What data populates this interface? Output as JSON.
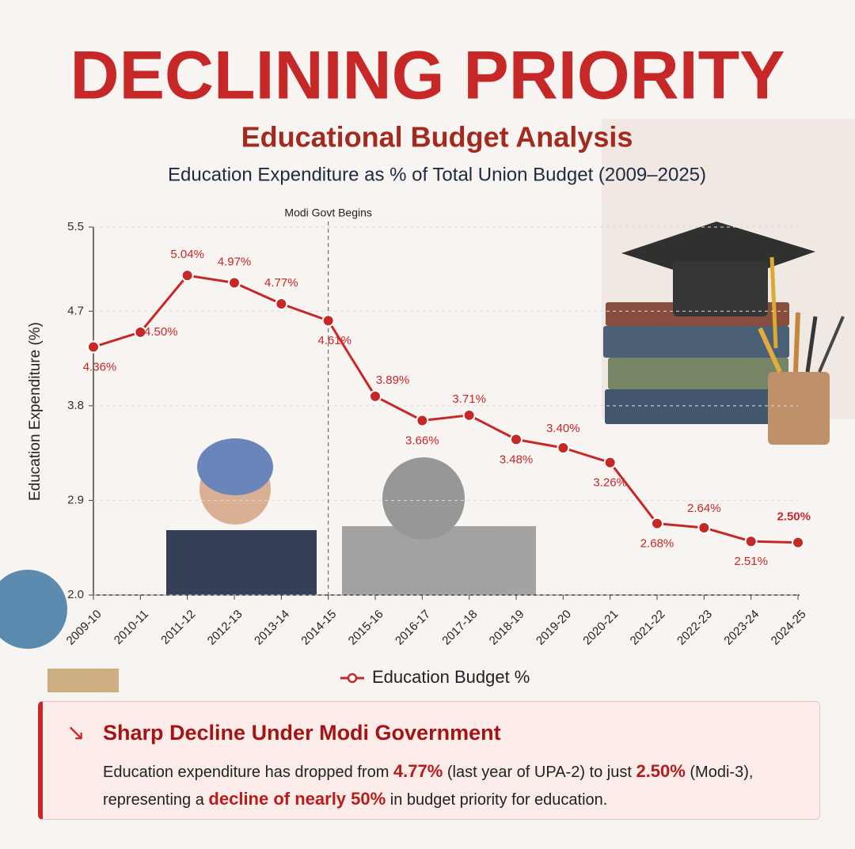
{
  "chart_data": {
    "type": "line",
    "title": "DECLINING PRIORITY",
    "subtitle": "Educational Budget Analysis",
    "description": "Education Expenditure as % of Total Union Budget (2009–2025)",
    "y_label": "Education Expenditure (%)",
    "categories": [
      "2009-10",
      "2010-11",
      "2011-12",
      "2012-13",
      "2013-14",
      "2014-15",
      "2015-16",
      "2016-17",
      "2017-18",
      "2018-19",
      "2019-20",
      "2020-21",
      "2021-22",
      "2022-23",
      "2023-24",
      "2024-25"
    ],
    "series": [
      {
        "name": "Education Budget %",
        "color": "#c62828",
        "values": [
          4.36,
          4.5,
          5.04,
          4.97,
          4.77,
          4.61,
          3.89,
          3.66,
          3.71,
          3.48,
          3.4,
          3.26,
          2.68,
          2.64,
          2.51,
          2.5
        ],
        "value_labels": [
          "4.36%",
          "4.50%",
          "5.04%",
          "4.97%",
          "4.77%",
          "4.61%",
          "3.89%",
          "3.66%",
          "3.71%",
          "3.48%",
          "3.40%",
          "3.26%",
          "2.68%",
          "2.64%",
          "2.51%",
          "2.50%"
        ]
      }
    ],
    "ylim": [
      2.0,
      5.5
    ],
    "yticks": [
      {
        "value": 2,
        "label": "2.0"
      },
      2.9,
      3.8,
      4.7,
      5.5
    ],
    "grid": true,
    "annotation": {
      "label": "Modi Govt Begins",
      "at": "2014-15"
    }
  },
  "callout": {
    "title": "Sharp Decline Under Modi Government",
    "body": [
      "Education expenditure has dropped from ",
      "4.77%",
      " (last year of UPA-2) to just ",
      "2.50%",
      " (Modi-3),",
      "representing a ",
      "decline of nearly 50%",
      " in budget priority for education."
    ]
  }
}
